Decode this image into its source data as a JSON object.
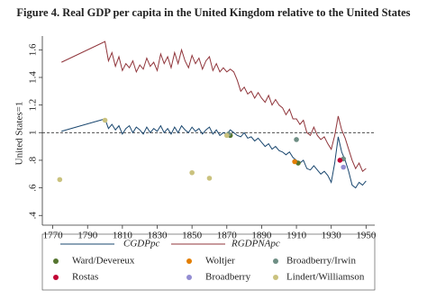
{
  "chart_data": {
    "type": "line",
    "title": "Figure 4. Real GDP per capita in the United Kingdom relative to the United States",
    "y_label": "United States=1",
    "x": [
      1775,
      1800,
      1802,
      1804,
      1806,
      1808,
      1810,
      1812,
      1814,
      1816,
      1818,
      1820,
      1822,
      1824,
      1826,
      1828,
      1830,
      1832,
      1834,
      1836,
      1838,
      1840,
      1842,
      1844,
      1846,
      1848,
      1850,
      1852,
      1854,
      1856,
      1858,
      1860,
      1862,
      1864,
      1866,
      1868,
      1870,
      1872,
      1874,
      1876,
      1878,
      1880,
      1882,
      1884,
      1886,
      1888,
      1890,
      1892,
      1894,
      1896,
      1898,
      1900,
      1902,
      1904,
      1906,
      1908,
      1910,
      1912,
      1914,
      1916,
      1918,
      1920,
      1922,
      1924,
      1926,
      1928,
      1930,
      1932,
      1934,
      1936,
      1938,
      1940,
      1942,
      1944,
      1946,
      1948,
      1950
    ],
    "series": [
      {
        "name": "CGDPpc",
        "kind": "line",
        "color": "#1a476f",
        "values": [
          1.01,
          1.1,
          1.03,
          1.06,
          1.02,
          1.05,
          0.99,
          1.03,
          1.05,
          1.0,
          1.04,
          1.02,
          0.99,
          1.04,
          1.0,
          1.03,
          1.01,
          1.05,
          1.0,
          1.03,
          0.99,
          1.04,
          1.0,
          1.05,
          1.02,
          1.0,
          1.04,
          1.01,
          1.03,
          0.99,
          1.02,
          1.04,
          0.99,
          1.02,
          0.98,
          1.0,
          0.99,
          1.02,
          1.0,
          0.98,
          0.97,
          1.0,
          0.96,
          0.97,
          0.94,
          0.96,
          0.93,
          0.9,
          0.92,
          0.88,
          0.9,
          0.87,
          0.86,
          0.84,
          0.86,
          0.82,
          0.8,
          0.78,
          0.8,
          0.74,
          0.73,
          0.76,
          0.73,
          0.7,
          0.72,
          0.69,
          0.64,
          0.78,
          0.97,
          0.86,
          0.8,
          0.72,
          0.62,
          0.6,
          0.64,
          0.62,
          0.65
        ]
      },
      {
        "name": "RGDPNApc",
        "kind": "line",
        "color": "#90353b",
        "values": [
          1.51,
          1.66,
          1.52,
          1.58,
          1.48,
          1.55,
          1.45,
          1.5,
          1.47,
          1.52,
          1.44,
          1.49,
          1.46,
          1.54,
          1.48,
          1.51,
          1.45,
          1.57,
          1.5,
          1.55,
          1.47,
          1.58,
          1.5,
          1.6,
          1.52,
          1.47,
          1.56,
          1.5,
          1.54,
          1.46,
          1.52,
          1.55,
          1.45,
          1.5,
          1.44,
          1.47,
          1.44,
          1.46,
          1.44,
          1.38,
          1.3,
          1.33,
          1.28,
          1.3,
          1.25,
          1.29,
          1.25,
          1.22,
          1.27,
          1.2,
          1.24,
          1.2,
          1.18,
          1.13,
          1.17,
          1.1,
          1.1,
          1.06,
          1.09,
          1.0,
          0.98,
          1.04,
          0.98,
          0.95,
          0.97,
          0.92,
          0.88,
          0.98,
          1.12,
          1.02,
          0.96,
          0.88,
          0.8,
          0.74,
          0.78,
          0.72,
          0.74
        ]
      },
      {
        "name": "Ward/Devereux",
        "kind": "scatter",
        "color": "#55752f",
        "x": [
          1872,
          1911
        ],
        "values": [
          0.98,
          0.78
        ]
      },
      {
        "name": "Woltjer",
        "kind": "scatter",
        "color": "#e37e00",
        "x": [
          1909
        ],
        "values": [
          0.79
        ]
      },
      {
        "name": "Broadberry/Irwin",
        "kind": "scatter",
        "color": "#6e8e84",
        "x": [
          1871,
          1910,
          1937
        ],
        "values": [
          0.99,
          0.95,
          0.81
        ]
      },
      {
        "name": "Rostas",
        "kind": "scatter",
        "color": "#c10534",
        "x": [
          1935
        ],
        "values": [
          0.8
        ]
      },
      {
        "name": "Broadberry",
        "kind": "scatter",
        "color": "#938dd2",
        "x": [
          1937
        ],
        "values": [
          0.75
        ]
      },
      {
        "name": "Lindert/Williamson",
        "kind": "scatter",
        "color": "#cac27e",
        "x": [
          1774,
          1800,
          1850,
          1860,
          1870
        ],
        "values": [
          0.66,
          1.09,
          0.71,
          0.67,
          0.98
        ]
      }
    ],
    "reference_line": 1,
    "xlim": [
      1764,
      1955
    ],
    "xticks": [
      1770,
      1790,
      1810,
      1830,
      1850,
      1870,
      1890,
      1910,
      1930,
      1950
    ],
    "ylim": [
      0.33,
      1.7
    ],
    "yticks": [
      {
        "value": 0.4,
        "label": ".4"
      },
      {
        "value": 0.6,
        "label": ".6"
      },
      {
        "value": 0.8,
        "label": ".8"
      },
      1,
      {
        "value": 1.2,
        "label": "1.2"
      },
      {
        "value": 1.4,
        "label": "1.4"
      },
      {
        "value": 1.6,
        "label": "1.6"
      }
    ]
  }
}
